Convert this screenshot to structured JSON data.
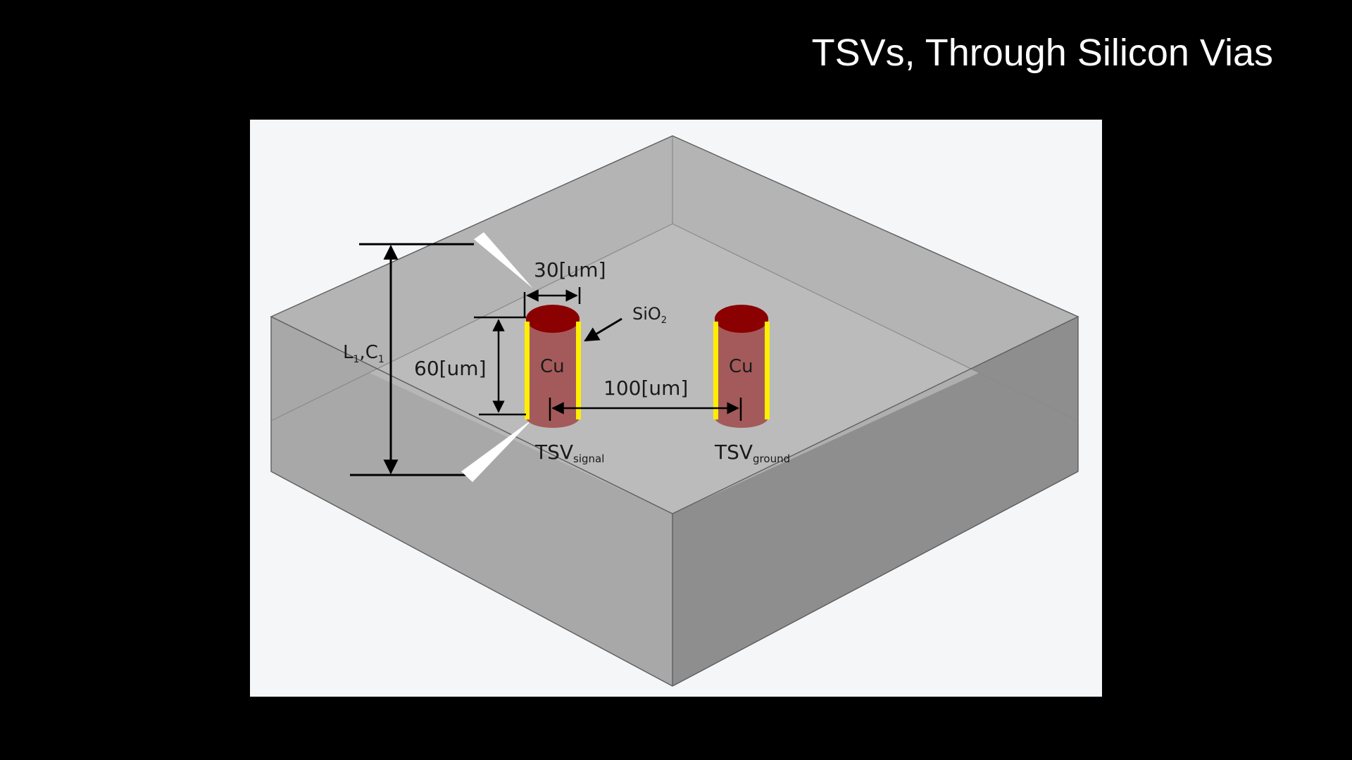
{
  "slide": {
    "title": "TSVs, Through Silicon Vias"
  },
  "diagram": {
    "labels": {
      "diameter": "30[um]",
      "height": "60[um]",
      "pitch": "100[um]",
      "oxide_main": "SiO",
      "oxide_sub": "2",
      "material_signal": "Cu",
      "material_ground": "Cu",
      "lc_L": "L",
      "lc_L_sub": "1",
      "lc_C": "C",
      "lc_C_sub": "1",
      "tsv_signal_main": "TSV",
      "tsv_signal_sub": "signal",
      "tsv_ground_main": "TSV",
      "tsv_ground_sub": "ground"
    },
    "colors": {
      "substrate_top": "#b4b4b4",
      "substrate_left": "#a7a7a7",
      "substrate_right": "#8e8e8e",
      "copper_top": "#8b0000",
      "copper_body": "#a45a5a",
      "oxide_liner": "#ffee00",
      "background": "#f5f6f8"
    }
  }
}
